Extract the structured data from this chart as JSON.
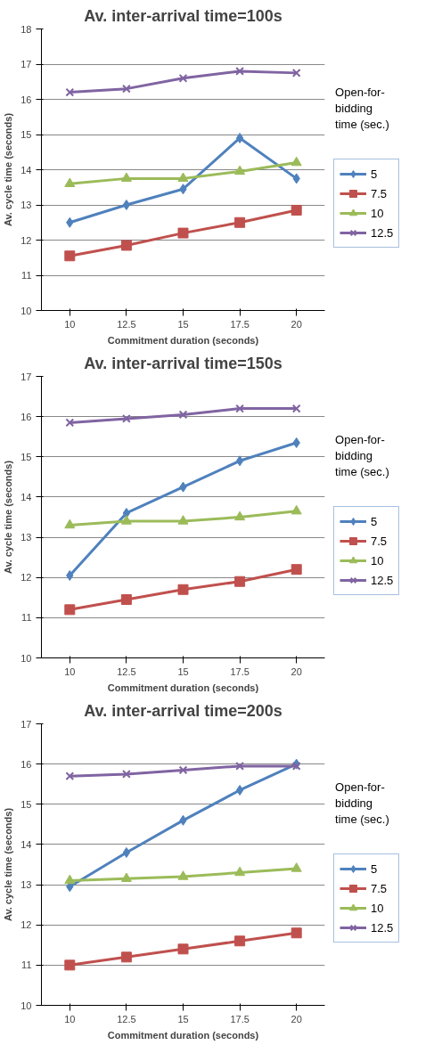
{
  "chart_data": [
    {
      "type": "line",
      "title": "Av. inter-arrival time=100s",
      "xlabel": "Commitment duration (seconds)",
      "ylabel": "Av. cycle time (seconds)",
      "legend_title": "Open-for-bidding time (sec.)",
      "categories": [
        "10",
        "12.5",
        "15",
        "17.5",
        "20"
      ],
      "ylim": [
        10,
        18
      ],
      "yticks": [
        10,
        11,
        12,
        13,
        14,
        15,
        16,
        17,
        18
      ],
      "grid": "y",
      "legend": "right",
      "series": [
        {
          "name": "5",
          "color": "#4f81bd",
          "marker": "diamond",
          "values": [
            12.5,
            13.0,
            13.45,
            14.9,
            13.75
          ]
        },
        {
          "name": "7.5",
          "color": "#c0504d",
          "marker": "square",
          "values": [
            11.55,
            11.85,
            12.2,
            12.5,
            12.85
          ]
        },
        {
          "name": "10",
          "color": "#9bbb59",
          "marker": "triangle",
          "values": [
            13.6,
            13.75,
            13.75,
            13.95,
            14.2
          ]
        },
        {
          "name": "12.5",
          "color": "#8064a2",
          "marker": "cross",
          "values": [
            16.2,
            16.3,
            16.6,
            16.8,
            16.75
          ]
        }
      ]
    },
    {
      "type": "line",
      "title": "Av. inter-arrival time=150s",
      "xlabel": "Commitment duration (seconds)",
      "ylabel": "Av. cycle time (seconds)",
      "legend_title": "Open-for-bidding time (sec.)",
      "categories": [
        "10",
        "12.5",
        "15",
        "17.5",
        "20"
      ],
      "ylim": [
        10,
        17
      ],
      "yticks": [
        10,
        11,
        12,
        13,
        14,
        15,
        16,
        17
      ],
      "grid": "y",
      "legend": "right",
      "series": [
        {
          "name": "5",
          "color": "#4f81bd",
          "marker": "diamond",
          "values": [
            12.05,
            13.6,
            14.25,
            14.9,
            15.35
          ]
        },
        {
          "name": "7.5",
          "color": "#c0504d",
          "marker": "square",
          "values": [
            11.2,
            11.45,
            11.7,
            11.9,
            12.2
          ]
        },
        {
          "name": "10",
          "color": "#9bbb59",
          "marker": "triangle",
          "values": [
            13.3,
            13.4,
            13.4,
            13.5,
            13.65
          ]
        },
        {
          "name": "12.5",
          "color": "#8064a2",
          "marker": "cross",
          "values": [
            15.85,
            15.95,
            16.05,
            16.2,
            16.2
          ]
        }
      ]
    },
    {
      "type": "line",
      "title": "Av. inter-arrival time=200s",
      "xlabel": "Commitment duration (seconds)",
      "ylabel": "Av. cycle time (seconds)",
      "legend_title": "Open-for-bidding time (sec.)",
      "categories": [
        "10",
        "12.5",
        "15",
        "17.5",
        "20"
      ],
      "ylim": [
        10,
        17
      ],
      "yticks": [
        10,
        11,
        12,
        13,
        14,
        15,
        16,
        17
      ],
      "grid": "y",
      "legend": "right",
      "series": [
        {
          "name": "5",
          "color": "#4f81bd",
          "marker": "diamond",
          "values": [
            12.95,
            13.8,
            14.6,
            15.35,
            16.0
          ]
        },
        {
          "name": "7.5",
          "color": "#c0504d",
          "marker": "square",
          "values": [
            11.0,
            11.2,
            11.4,
            11.6,
            11.8
          ]
        },
        {
          "name": "10",
          "color": "#9bbb59",
          "marker": "triangle",
          "values": [
            13.1,
            13.15,
            13.2,
            13.3,
            13.4
          ]
        },
        {
          "name": "12.5",
          "color": "#8064a2",
          "marker": "cross",
          "values": [
            15.7,
            15.75,
            15.85,
            15.95,
            15.95
          ]
        }
      ]
    }
  ]
}
